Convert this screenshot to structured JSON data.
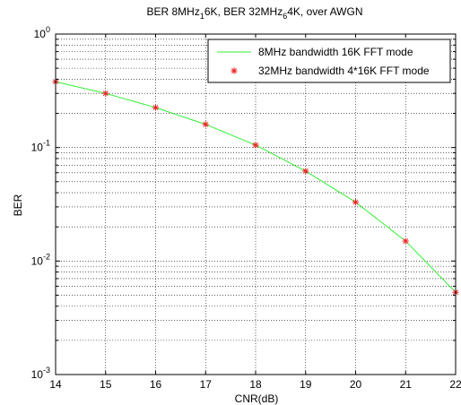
{
  "chart_data": {
    "type": "line",
    "title_parts": {
      "a": "BER 8MHz",
      "a_sub": "1",
      "b": "6K, BER 32MHz",
      "b_sub": "6",
      "c": "4K, over AWGN"
    },
    "xlabel": "CNR(dB)",
    "ylabel": "BER",
    "xlim": [
      14,
      22
    ],
    "ylim": [
      0.001,
      1
    ],
    "yscale": "log",
    "grid": true,
    "legend_position": "top-right",
    "x_ticks": [
      14,
      15,
      16,
      17,
      18,
      19,
      20,
      21,
      22
    ],
    "x_tick_labels": [
      "14",
      "15",
      "16",
      "17",
      "18",
      "19",
      "20",
      "21",
      "22"
    ],
    "y_ticks": [
      {
        "value": 1,
        "base": "10",
        "exp": "0"
      },
      {
        "value": 0.1,
        "base": "10",
        "exp": "-1"
      },
      {
        "value": 0.01,
        "base": "10",
        "exp": "-2"
      },
      {
        "value": 0.001,
        "base": "10",
        "exp": "-3"
      }
    ],
    "series": [
      {
        "name": "8MHz bandwidth 16K FFT mode",
        "style": "line",
        "color": "#33ee33",
        "x": [
          14,
          15,
          16,
          17,
          18,
          19,
          20,
          21,
          22
        ],
        "y": [
          0.38,
          0.3,
          0.225,
          0.16,
          0.105,
          0.062,
          0.033,
          0.015,
          0.0053
        ]
      },
      {
        "name": "32MHz bandwidth 4*16K FFT mode",
        "style": "markers",
        "marker": "asterisk",
        "color": "#ee2222",
        "x": [
          14,
          15,
          16,
          17,
          18,
          19,
          20,
          21,
          22
        ],
        "y": [
          0.38,
          0.3,
          0.225,
          0.16,
          0.105,
          0.062,
          0.033,
          0.015,
          0.0053
        ]
      }
    ]
  }
}
